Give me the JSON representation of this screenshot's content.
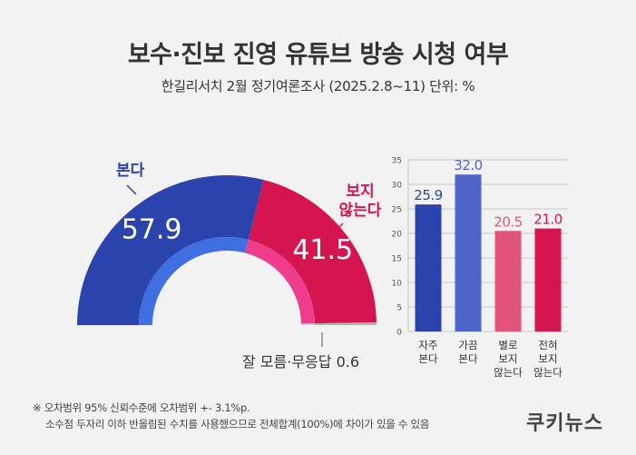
{
  "title": "보수·진보 진영 유튜브 방송 시청 여부",
  "subtitle": "한길리서치 2월 정기여론조사 (2025.2.8~11) 단위: %",
  "notes": [
    "※ 오차범위 95% 신뢰수준에 오차범위 +- 3.1%p.",
    "소수점 두자리 이하 반올림된 수치를 사용했으므로 전체합계(100%)에 차이가 있을 수 있음"
  ],
  "brand": "쿠키뉴스",
  "colors": {
    "blue": "#2b44ad",
    "red": "#d4154f",
    "gray": "#b3b3b3",
    "bar_light_blue": "#4d64c8",
    "bar_pink": "#e2547a"
  },
  "chart_data": [
    {
      "type": "pie",
      "subtype": "half-donut",
      "slices": [
        {
          "label": "본다",
          "value": 57.9,
          "color": "#2b44ad"
        },
        {
          "label": "보지 않는다",
          "value": 41.5,
          "color": "#d4154f"
        },
        {
          "label": "잘 모름·무응답",
          "value": 0.6,
          "color": "#b3b3b3"
        }
      ],
      "value_labels": [
        "57.9",
        "41.5"
      ],
      "other_label": "잘 모름·무응답 0.6"
    },
    {
      "type": "bar",
      "categories": [
        "자주\n본다",
        "가끔\n본다",
        "별로\n보지\n않는다",
        "전혀\n보지\n않는다"
      ],
      "values": [
        25.9,
        32.0,
        20.5,
        21.0
      ],
      "value_labels": [
        "25.9",
        "32.0",
        "20.5",
        "21.0"
      ],
      "colors": [
        "#2b44ad",
        "#4d64c8",
        "#e2547a",
        "#d4154f"
      ],
      "ylim": [
        0,
        35
      ],
      "yticks": [
        0,
        5,
        10,
        15,
        20,
        25,
        30,
        35
      ],
      "grid": true
    }
  ]
}
